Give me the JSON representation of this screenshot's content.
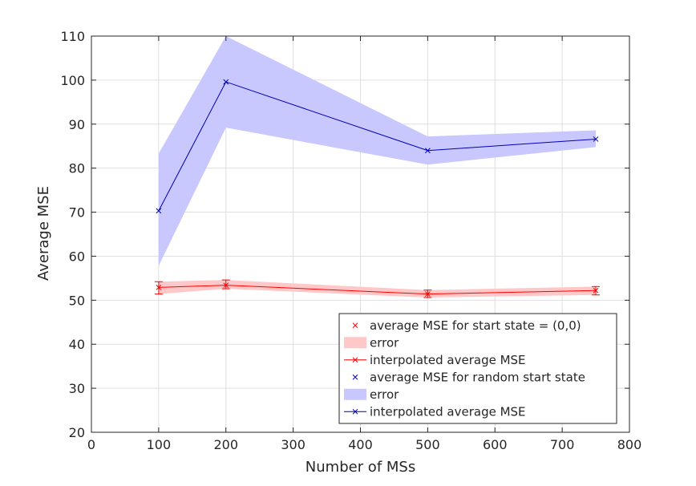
{
  "chart_data": {
    "type": "line",
    "title": "",
    "xlabel": "Number of MSs",
    "ylabel": "Average MSE",
    "xlim": [
      0,
      800
    ],
    "ylim": [
      20,
      110
    ],
    "xticks": [
      0,
      100,
      200,
      300,
      400,
      500,
      600,
      700,
      800
    ],
    "yticks": [
      20,
      30,
      40,
      50,
      60,
      70,
      80,
      90,
      100,
      110
    ],
    "grid": true,
    "legend_position": "bottom-right",
    "x": [
      100,
      200,
      500,
      750
    ],
    "series": [
      {
        "name": "interpolated average MSE",
        "marker_name": "average MSE for start state = (0,0)",
        "error_name": "error",
        "color": "#ff0000",
        "band_color": "#ffc8c8",
        "values": [
          52.9,
          53.4,
          51.4,
          52.2
        ],
        "lower": [
          51.4,
          52.6,
          50.6,
          51.2
        ],
        "upper": [
          54.2,
          54.6,
          52.3,
          53.1
        ]
      },
      {
        "name": "interpolated average MSE",
        "marker_name": "average MSE for random start state",
        "error_name": "error",
        "color": "#0000b4",
        "band_color": "#c8c8ff",
        "values": [
          70.3,
          99.6,
          84.0,
          86.6
        ],
        "lower": [
          57.8,
          89.2,
          80.8,
          84.8
        ],
        "upper": [
          83.3,
          110.0,
          87.2,
          88.6
        ]
      }
    ],
    "legend": [
      {
        "kind": "marker",
        "label": "average MSE for start state = (0,0)",
        "color": "#ff0000"
      },
      {
        "kind": "patch",
        "label": "error",
        "color": "#ffc8c8"
      },
      {
        "kind": "line",
        "label": "interpolated average MSE",
        "color": "#ff0000"
      },
      {
        "kind": "marker",
        "label": "average MSE for random start state",
        "color": "#0000b4"
      },
      {
        "kind": "patch",
        "label": "error",
        "color": "#c8c8ff"
      },
      {
        "kind": "line",
        "label": "interpolated average MSE",
        "color": "#0000b4"
      }
    ]
  }
}
